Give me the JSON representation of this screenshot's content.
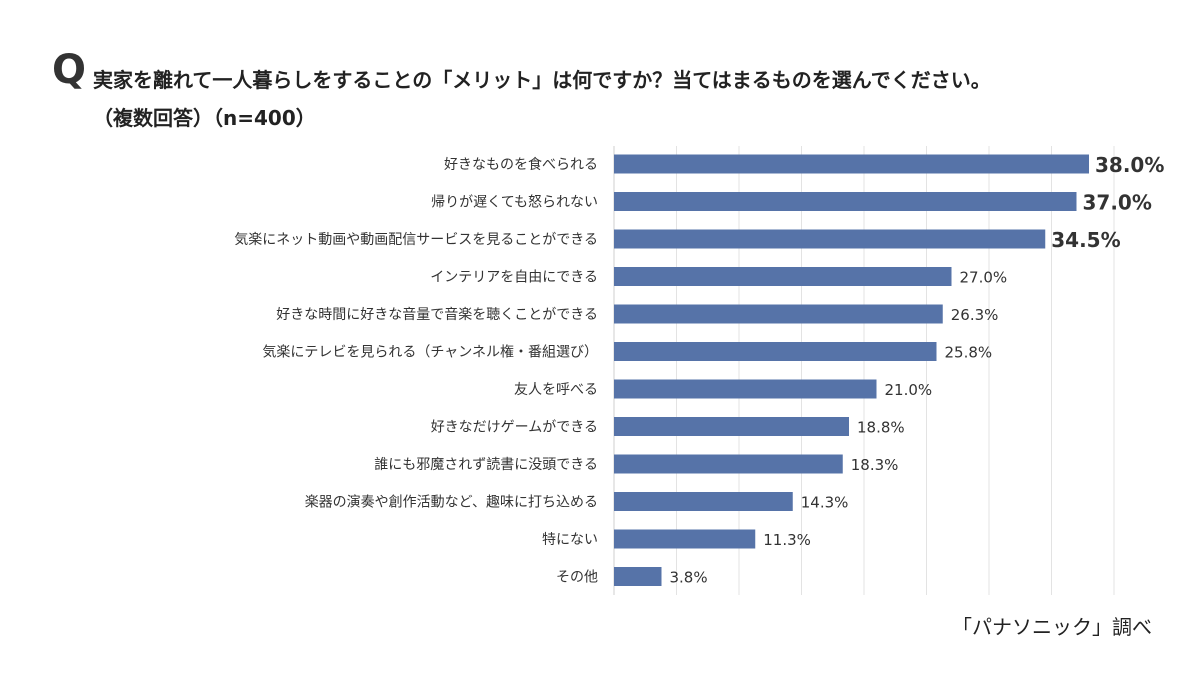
{
  "header": {
    "q_mark": "Q",
    "title": "実家を離れて一人暮らしをすることの「メリット」は何ですか？当てはまるものを選んでください。",
    "subtitle": "（複数回答）（n=400）"
  },
  "source": "「パナソニック」調べ",
  "chart_data": {
    "type": "bar",
    "orientation": "horizontal",
    "title": "実家を離れて一人暮らしをすることの「メリット」は何ですか？当てはまるものを選んでください。",
    "categories": [
      "好きなものを食べられる",
      "帰りが遅くても怒られない",
      "気楽にネット動画や動画配信サービスを見ることができる",
      "インテリアを自由にできる",
      "好きな時間に好きな音量で音楽を聴くことができる",
      "気楽にテレビを見られる（チャンネル権・番組選び）",
      "友人を呼べる",
      "好きなだけゲームができる",
      "誰にも邪魔されず読書に没頭できる",
      "楽器の演奏や創作活動など、趣味に打ち込める",
      "特にない",
      "その他"
    ],
    "values": [
      38.0,
      37.0,
      34.5,
      27.0,
      26.3,
      25.8,
      21.0,
      18.8,
      18.3,
      14.3,
      11.3,
      3.8
    ],
    "data_labels": [
      "38.0%",
      "37.0%",
      "34.5%",
      "27.0%",
      "26.3%",
      "25.8%",
      "21.0%",
      "18.8%",
      "18.3%",
      "14.3%",
      "11.3%",
      "3.8%"
    ],
    "xlim": [
      0,
      40
    ],
    "grid_step": 5,
    "grid": true,
    "legend": "none",
    "bar_color": "#5673a8",
    "grid_color": "#e3e3e3",
    "axis_color": "#cfcfcf"
  }
}
